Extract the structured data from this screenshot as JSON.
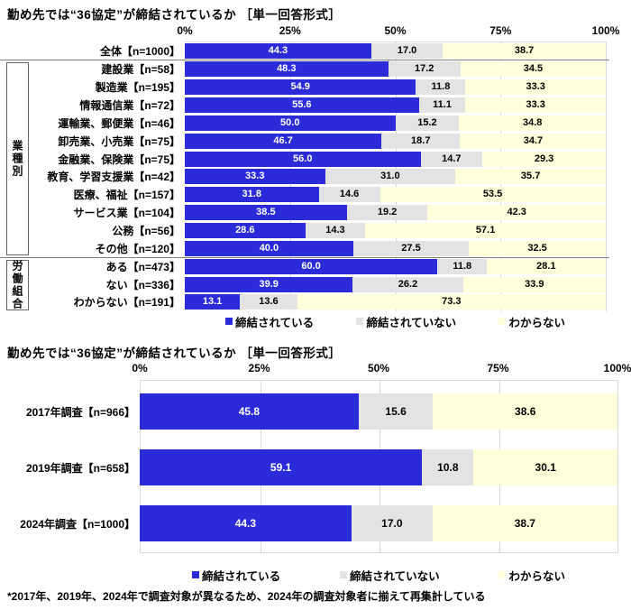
{
  "footnote": "*2017年、2019年、2024年で調査対象が異なるため、2024年の調査対象者に揃えて再集計している",
  "chart_data": [
    {
      "type": "bar",
      "stacked": true,
      "orientation": "horizontal",
      "title": "勤め先では“36協定”が締結されているか ［単一回答形式］",
      "x_ticks": [
        "0%",
        "25%",
        "50%",
        "75%",
        "100%"
      ],
      "xlim": [
        0,
        100
      ],
      "legend_position": "bottom",
      "grid": true,
      "categories": [
        "全体【n=1000】",
        "建設業【n=58】",
        "製造業【n=195】",
        "情報通信業【n=72】",
        "運輸業、郵便業【n=46】",
        "卸売業、小売業【n=75】",
        "金融業、保険業【n=75】",
        "教育、学習支援業【n=42】",
        "医療、福祉【n=157】",
        "サービス業【n=104】",
        "公務【n=56】",
        "その他【n=120】",
        "ある【n=473】",
        "ない【n=336】",
        "わからない【n=191】"
      ],
      "groups": [
        {
          "label": "業種別",
          "start_row": 1,
          "end_row": 11
        },
        {
          "label": "労働組合",
          "start_row": 12,
          "end_row": 14
        }
      ],
      "series": [
        {
          "name": "締結されている",
          "color": "#2b2bd9",
          "value_color": "#ffffff",
          "values": [
            44.3,
            48.3,
            54.9,
            55.6,
            50.0,
            46.7,
            56.0,
            33.3,
            31.8,
            38.5,
            28.6,
            40.0,
            60.0,
            39.9,
            13.1
          ]
        },
        {
          "name": "締結されていない",
          "color": "#e3e3e3",
          "value_color": "#000000",
          "values": [
            17.0,
            17.2,
            11.8,
            11.1,
            15.2,
            18.7,
            14.7,
            31.0,
            14.6,
            19.2,
            14.3,
            27.5,
            11.8,
            26.2,
            13.6
          ]
        },
        {
          "name": "わからない",
          "color": "#ffffd9",
          "value_color": "#000000",
          "values": [
            38.7,
            34.5,
            33.3,
            33.3,
            34.8,
            34.7,
            29.3,
            35.7,
            53.5,
            42.3,
            57.1,
            32.5,
            28.1,
            33.9,
            73.3
          ]
        }
      ]
    },
    {
      "type": "bar",
      "stacked": true,
      "orientation": "horizontal",
      "title": "勤め先では“36協定”が締結されているか ［単一回答形式］",
      "x_ticks": [
        "0%",
        "25%",
        "50%",
        "75%",
        "100%"
      ],
      "xlim": [
        0,
        100
      ],
      "legend_position": "bottom",
      "grid": true,
      "categories": [
        "2017年調査【n=966】",
        "2019年調査【n=658】",
        "2024年調査【n=1000】"
      ],
      "series": [
        {
          "name": "締結されている",
          "color": "#2b2bd9",
          "value_color": "#ffffff",
          "values": [
            45.8,
            59.1,
            44.3
          ]
        },
        {
          "name": "締結されていない",
          "color": "#e3e3e3",
          "value_color": "#000000",
          "values": [
            15.6,
            10.8,
            17.0
          ]
        },
        {
          "name": "わからない",
          "color": "#ffffd9",
          "value_color": "#000000",
          "values": [
            38.6,
            30.1,
            38.7
          ]
        }
      ]
    }
  ]
}
